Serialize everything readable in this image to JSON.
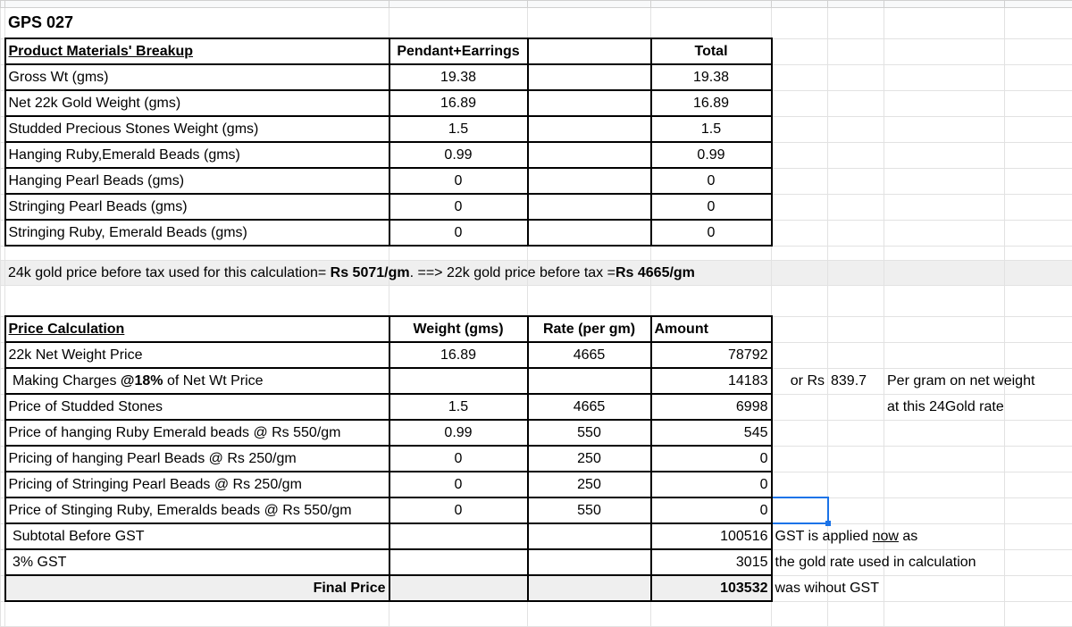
{
  "title": "GPS 027",
  "materials": {
    "header": [
      "Product Materials' Breakup",
      "Pendant+Earrings",
      "",
      "Total"
    ],
    "rows": [
      {
        "label": "Gross Wt (gms)",
        "value": "19.38",
        "total": "19.38"
      },
      {
        "label": "Net 22k Gold Weight (gms)",
        "value": "16.89",
        "total": "16.89"
      },
      {
        "label": "Studded Precious Stones Weight (gms)",
        "value": "1.5",
        "total": "1.5"
      },
      {
        "label": "Hanging Ruby,Emerald Beads (gms)",
        "value": "0.99",
        "total": "0.99"
      },
      {
        "label": "Hanging Pearl Beads (gms)",
        "value": "0",
        "total": "0"
      },
      {
        "label": "Stringing Pearl Beads (gms)",
        "value": "0",
        "total": "0"
      },
      {
        "label": "Stringing Ruby, Emerald Beads (gms)",
        "value": "0",
        "total": "0"
      }
    ]
  },
  "gold_note": {
    "part1": "24k gold price before tax used for this calculation= ",
    "price24": "Rs 5071/gm",
    "part2": ".  ==> 22k gold price before tax =",
    "price22": "Rs 4665/gm"
  },
  "price": {
    "header": [
      "Price Calculation",
      "Weight (gms)",
      "Rate (per gm)",
      "Amount"
    ],
    "rows": [
      {
        "label": "22k Net Weight Price",
        "weight": "16.89",
        "rate": "4665",
        "amount": "78792"
      },
      {
        "label_pre": " Making Charges ",
        "label_bold": "@18%",
        "label_post": " of Net Wt Price",
        "weight": "",
        "rate": "",
        "amount": "14183"
      },
      {
        "label": "Price of Studded Stones",
        "weight": "1.5",
        "rate": "4665",
        "amount": "6998"
      },
      {
        "label": "Price of hanging Ruby Emerald beads @ Rs 550/gm",
        "weight": "0.99",
        "rate": "550",
        "amount": "545"
      },
      {
        "label": "Pricing of hanging Pearl Beads @ Rs 250/gm",
        "weight": "0",
        "rate": "250",
        "amount": "0"
      },
      {
        "label": "Pricing of Stringing Pearl Beads @ Rs 250/gm",
        "weight": "0",
        "rate": "250",
        "amount": "0"
      },
      {
        "label": "Price of Stinging Ruby, Emeralds beads @ Rs 550/gm",
        "weight": "0",
        "rate": "550",
        "amount": "0"
      },
      {
        "label": " Subtotal Before GST",
        "amount": "100516"
      },
      {
        "label": " 3% GST",
        "amount": "3015"
      },
      {
        "label": "Final Price",
        "amount": "103532"
      }
    ]
  },
  "notes": {
    "making_or": "or Rs",
    "making_per_gram": "839.7",
    "making_note1": "Per gram on net weight",
    "making_note2": "at this 24Gold rate",
    "gst_pre": "GST is applied ",
    "gst_now": "now",
    "gst_post": " as",
    "gst_line2": "the gold rate used in calculation",
    "gst_line3": "was wihout GST"
  },
  "colors": {
    "selection": "#1a73e8",
    "highlight_row": "#efefef"
  }
}
